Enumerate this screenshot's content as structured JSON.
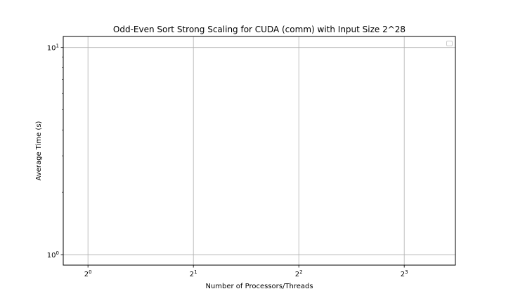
{
  "chart_data": {
    "type": "line",
    "title": "Odd-Even Sort Strong Scaling for CUDA (comm) with Input Size 2^28",
    "xlabel": "Number of Processors/Threads",
    "ylabel": "Average Time (s)",
    "x_scale": "log2",
    "y_scale": "log10",
    "x_ticks": [
      {
        "value": 1,
        "base": "2",
        "exp": "0"
      },
      {
        "value": 2,
        "base": "2",
        "exp": "1"
      },
      {
        "value": 4,
        "base": "2",
        "exp": "2"
      },
      {
        "value": 8,
        "base": "2",
        "exp": "3"
      }
    ],
    "y_ticks": [
      {
        "value": 1,
        "base": "10",
        "exp": "0"
      },
      {
        "value": 10,
        "base": "10",
        "exp": "1"
      }
    ],
    "xlim": [
      0.85,
      11.2
    ],
    "ylim": [
      0.89,
      11.3
    ],
    "grid": true,
    "legend": "top-right",
    "series": []
  }
}
